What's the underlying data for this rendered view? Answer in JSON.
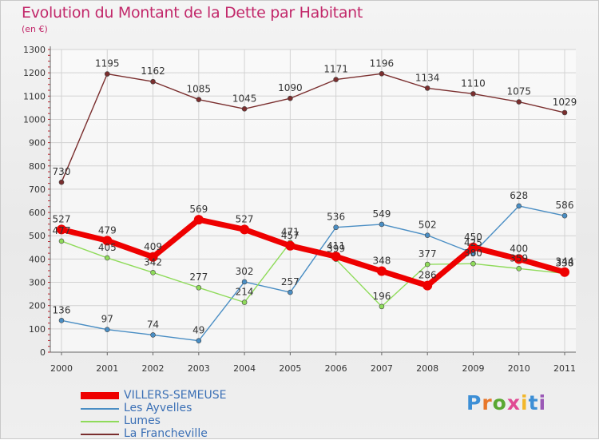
{
  "title": "Evolution du Montant de la Dette par Habitant",
  "subtitle": "(en €)",
  "logo_text": "Proxiti",
  "chart_data": {
    "type": "line",
    "x": [
      "2000",
      "2001",
      "2002",
      "2003",
      "2004",
      "2005",
      "2006",
      "2007",
      "2008",
      "2009",
      "2010",
      "2011"
    ],
    "ylim": [
      0,
      1300
    ],
    "yticks": [
      0,
      100,
      200,
      300,
      400,
      500,
      600,
      700,
      800,
      900,
      1000,
      1100,
      1200,
      1300
    ],
    "grid": true,
    "legend_position": "bottom-left",
    "series": [
      {
        "name": "VILLERS-SEMEUSE",
        "color": "#ee0000",
        "values": [
          527,
          479,
          409,
          569,
          527,
          457,
          411,
          348,
          286,
          450,
          400,
          344
        ]
      },
      {
        "name": "Les Ayvelles",
        "color": "#4a8ec4",
        "values": [
          136,
          97,
          74,
          49,
          302,
          257,
          536,
          549,
          502,
          425,
          628,
          586
        ]
      },
      {
        "name": "Lumes",
        "color": "#8fdb5a",
        "values": [
          477,
          405,
          342,
          277,
          214,
          471,
          399,
          196,
          377,
          380,
          359,
          338
        ]
      },
      {
        "name": "La Francheville",
        "color": "#7a2e2e",
        "values": [
          730,
          1195,
          1162,
          1085,
          1045,
          1090,
          1171,
          1196,
          1134,
          1110,
          1075,
          1029
        ]
      }
    ]
  }
}
